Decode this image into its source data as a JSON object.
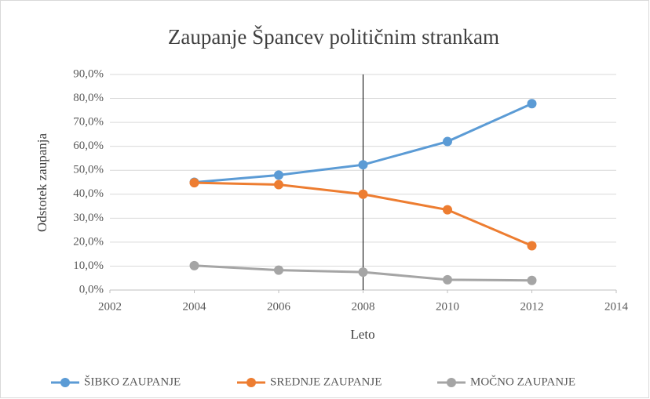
{
  "chart_data": {
    "type": "line",
    "title": "Zaupanje Špancev političnim strankam",
    "x_label": "Leto",
    "y_label": "Odstotek zaupanja",
    "x": [
      2004,
      2006,
      2008,
      2010,
      2012
    ],
    "series": [
      {
        "name": "ŠIBKO ZAUPANJE",
        "color": "#5b9bd5",
        "values": [
          45.0,
          48.0,
          52.3,
          62.0,
          77.8
        ]
      },
      {
        "name": "SREDNJE ZAUPANJE",
        "color": "#ed7d31",
        "values": [
          44.8,
          44.0,
          40.0,
          33.5,
          18.5
        ]
      },
      {
        "name": "MOČNO ZAUPANJE",
        "color": "#a5a5a5",
        "values": [
          10.2,
          8.3,
          7.5,
          4.3,
          4.0
        ]
      }
    ],
    "xlim": [
      2002,
      2014
    ],
    "xticks": [
      2002,
      2004,
      2006,
      2008,
      2010,
      2012,
      2014
    ],
    "ylim": [
      0,
      90
    ],
    "yticks": [
      {
        "value": 0,
        "label": "0,0%"
      },
      {
        "value": 10,
        "label": "10,0%"
      },
      {
        "value": 20,
        "label": "20,0%"
      },
      {
        "value": 30,
        "label": "30,0%"
      },
      {
        "value": 40,
        "label": "40,0%"
      },
      {
        "value": 50,
        "label": "50,0%"
      },
      {
        "value": 60,
        "label": "60,0%"
      },
      {
        "value": 70,
        "label": "70,0%"
      },
      {
        "value": 80,
        "label": "80,0%"
      },
      {
        "value": 90,
        "label": "90,0%"
      }
    ],
    "grid": true,
    "vline_x": 2008,
    "legend": "bottom"
  }
}
